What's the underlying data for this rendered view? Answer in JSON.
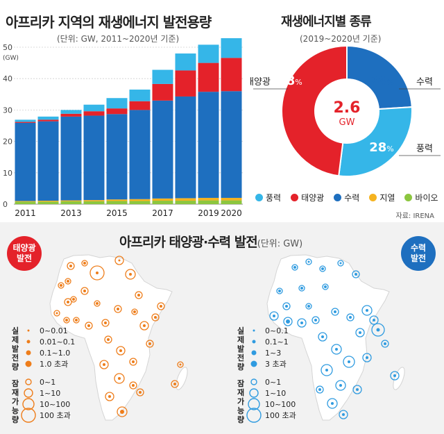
{
  "bar_chart": {
    "title": "아프리카 지역의 재생에너지 발전용량",
    "subtitle": "(단위: GW, 2011~2020년 기준)"
  },
  "pie_chart": {
    "title": "재생에너지별 종류",
    "subtitle": "(2019~2020년 기준)",
    "center_value": "2.6",
    "center_unit": "GW",
    "slices": [
      {
        "label": "수력",
        "pct": 24,
        "pct_text": "24",
        "color": "#1e6fbf"
      },
      {
        "label": "풍력",
        "pct": 28,
        "pct_text": "28",
        "color": "#35b6e8"
      },
      {
        "label": "태양광",
        "pct": 48,
        "pct_text": "48",
        "color": "#e4222a"
      }
    ],
    "pct_sign": "%"
  },
  "legend": [
    {
      "label": "풍력",
      "color": "#35b6e8"
    },
    {
      "label": "태양광",
      "color": "#e4222a"
    },
    {
      "label": "수력",
      "color": "#1e6fbf"
    },
    {
      "label": "지열",
      "color": "#f5b320"
    },
    {
      "label": "바이오",
      "color": "#8cc63f"
    }
  ],
  "source": "자료: IRENA",
  "map_section": {
    "title": "아프리카 태양광·수력 발전",
    "unit": "(단위: GW)",
    "solar_badge": [
      "태양광",
      "발전"
    ],
    "hydro_badge": [
      "수력",
      "발전"
    ],
    "actual_label": "실제발전량",
    "potential_label": "잠재가능량",
    "solar_actual": [
      "0~0.01",
      "0.01~0.1",
      "0.1~1.0",
      "1.0 초과"
    ],
    "hydro_actual": [
      "0~0.1",
      "0.1~1",
      "1~3",
      "3 초과"
    ],
    "potential": [
      "0~1",
      "1~10",
      "10~100",
      "100 초과"
    ],
    "solar_color": "#ee7d1a",
    "hydro_color": "#2f9be0"
  },
  "chart_data": [
    {
      "type": "bar",
      "stacked": true,
      "title": "아프리카 지역의 재생에너지 발전용량",
      "subtitle": "(단위: GW, 2011~2020년 기준)",
      "ylabel": "GW",
      "ylim": [
        0,
        50
      ],
      "yticks": [
        0,
        10,
        20,
        30,
        40,
        50
      ],
      "categories": [
        "2011",
        "2012",
        "2013",
        "2014",
        "2015",
        "2016",
        "2017",
        "2018",
        "2019",
        "2020"
      ],
      "xtick_labels": [
        "2011",
        "",
        "2013",
        "",
        "2015",
        "",
        "2017",
        "",
        "2019",
        "2020"
      ],
      "series": [
        {
          "name": "바이오",
          "color": "#8cc63f",
          "values": [
            0.8,
            0.8,
            0.9,
            0.9,
            1.0,
            1.0,
            1.1,
            1.1,
            1.2,
            1.2
          ]
        },
        {
          "name": "지열",
          "color": "#f5b320",
          "values": [
            0.2,
            0.3,
            0.3,
            0.4,
            0.5,
            0.6,
            0.7,
            0.8,
            0.8,
            0.8
          ]
        },
        {
          "name": "수력",
          "color": "#1e6fbf",
          "values": [
            24.9,
            25.3,
            26.7,
            26.9,
            27.2,
            28.4,
            31.2,
            32.4,
            33.8,
            34.0
          ]
        },
        {
          "name": "태양광",
          "color": "#e4222a",
          "values": [
            0.3,
            0.5,
            0.9,
            1.4,
            1.8,
            2.8,
            5.3,
            8.3,
            9.2,
            10.6
          ]
        },
        {
          "name": "풍력",
          "color": "#35b6e8",
          "values": [
            0.7,
            1.0,
            1.2,
            2.1,
            3.3,
            3.7,
            4.5,
            5.4,
            5.8,
            6.4
          ]
        }
      ],
      "grid": true,
      "legend": "bottom"
    },
    {
      "type": "pie",
      "donut": true,
      "title": "재생에너지별 종류",
      "subtitle": "(2019~2020년 기준)",
      "center_label": "2.6 GW",
      "labels": [
        "수력",
        "풍력",
        "태양광"
      ],
      "values": [
        24,
        28,
        48
      ],
      "colors": [
        "#1e6fbf",
        "#35b6e8",
        "#e4222a"
      ]
    }
  ]
}
